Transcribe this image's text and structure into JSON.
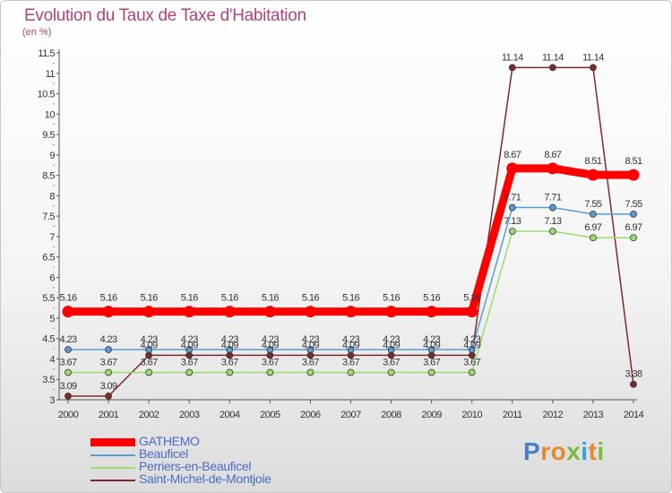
{
  "title": "Evolution du Taux de Taxe d'Habitation",
  "unit": "(en %)",
  "brand": {
    "letters": [
      "P",
      "r",
      "o",
      "x",
      "i",
      "t",
      "i"
    ],
    "colors": [
      "#4a7fc1",
      "#e58a2b",
      "#e58a2b",
      "#7cba3c",
      "#3a9fd8",
      "#e58a2b",
      "#7cba3c"
    ]
  },
  "chart_data": {
    "type": "line",
    "title": "Evolution du Taux de Taxe d'Habitation",
    "ylabel": "(en %)",
    "xlabel": "",
    "x": [
      "2000",
      "2001",
      "2002",
      "2003",
      "2004",
      "2005",
      "2006",
      "2007",
      "2008",
      "2009",
      "2010",
      "2011",
      "2012",
      "2013",
      "2014"
    ],
    "ylim": [
      3,
      11.5
    ],
    "yticks": [
      "3",
      "3.5",
      "4",
      "4.5",
      "5",
      "5.5",
      "6",
      "6.5",
      "7",
      "7.5",
      "8",
      "8.5",
      "9",
      "9.5",
      "10",
      "10.5",
      "11",
      "11.5"
    ],
    "grid": false,
    "legend_position": "bottom-left",
    "series": [
      {
        "name": "GATHEMO",
        "color": "#ff0000",
        "values": [
          5.16,
          5.16,
          5.16,
          5.16,
          5.16,
          5.16,
          5.16,
          5.16,
          5.16,
          5.16,
          5.16,
          8.67,
          8.67,
          8.51,
          8.51
        ],
        "labels": [
          "5.16",
          "5.16",
          "5.16",
          "5.16",
          "5.16",
          "5.16",
          "5.16",
          "5.16",
          "5.16",
          "5.16",
          "5.16",
          "8.67",
          "8.67",
          "8.51",
          "8.51"
        ]
      },
      {
        "name": "Beauficel",
        "color": "#5b9bd5",
        "values": [
          4.23,
          4.23,
          4.23,
          4.23,
          4.23,
          4.23,
          4.23,
          4.23,
          4.23,
          4.23,
          4.23,
          7.71,
          7.71,
          7.55,
          7.55
        ],
        "labels": [
          "4.23",
          "4.23",
          "4.23",
          "4.23",
          "4.23",
          "4.23",
          "4.23",
          "4.23",
          "4.23",
          "4.23",
          "4.23",
          "7.71",
          "7.71",
          "7.55",
          "7.55"
        ]
      },
      {
        "name": "Perriers-en-Beauficel",
        "color": "#9bdc6a",
        "values": [
          3.67,
          3.67,
          3.67,
          3.67,
          3.67,
          3.67,
          3.67,
          3.67,
          3.67,
          3.67,
          3.67,
          7.13,
          7.13,
          6.97,
          6.97
        ],
        "labels": [
          "3.67",
          "3.67",
          "3.67",
          "3.67",
          "3.67",
          "3.67",
          "3.67",
          "3.67",
          "3.67",
          "3.67",
          "3.67",
          "7.13",
          "7.13",
          "6.97",
          "6.97"
        ]
      },
      {
        "name": "Saint-Michel-de-Montjoie",
        "color": "#7a2b2b",
        "values": [
          3.09,
          3.09,
          4.09,
          4.09,
          4.09,
          4.09,
          4.09,
          4.09,
          4.09,
          4.09,
          4.09,
          11.14,
          11.14,
          11.14,
          3.38
        ],
        "labels": [
          "3.09",
          "3.09",
          "4.09",
          "4.09",
          "4.09",
          "4.09",
          "4.09",
          "4.09",
          "4.09",
          "4.09",
          "4.09",
          "11.14",
          "11.14",
          "11.14",
          "3.38"
        ]
      }
    ]
  }
}
